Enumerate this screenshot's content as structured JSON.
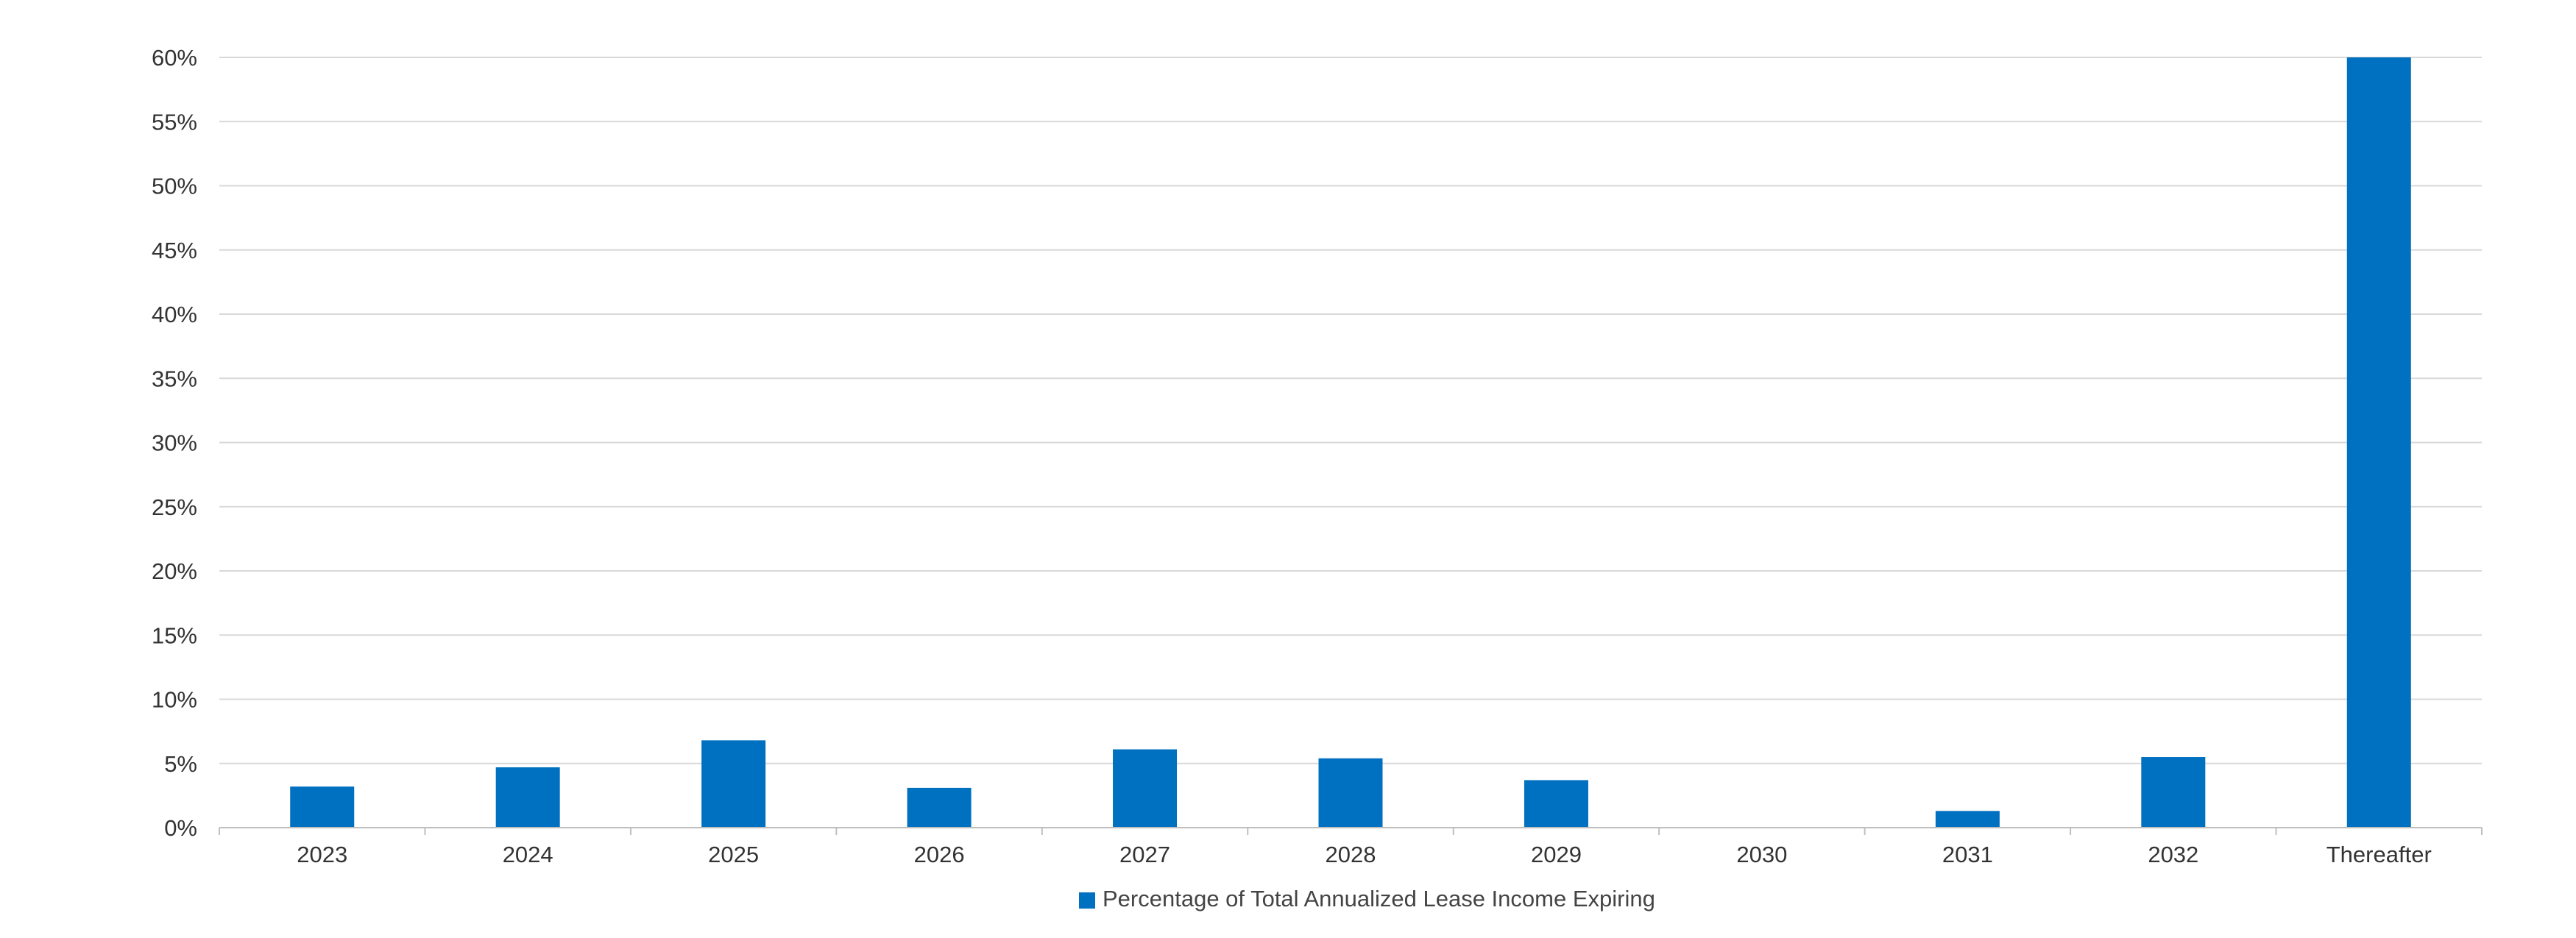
{
  "chart_data": {
    "type": "bar",
    "categories": [
      "2023",
      "2024",
      "2025",
      "2026",
      "2027",
      "2028",
      "2029",
      "2030",
      "2031",
      "2032",
      "Thereafter"
    ],
    "series": [
      {
        "name": "Percentage of Total Annualized Lease Income Expiring",
        "values": [
          3.2,
          4.7,
          6.8,
          3.1,
          6.1,
          5.4,
          3.7,
          0,
          1.3,
          5.5,
          60.0
        ],
        "color": "#0070C0"
      }
    ],
    "yticks": [
      "0%",
      "5%",
      "10%",
      "15%",
      "20%",
      "25%",
      "30%",
      "35%",
      "40%",
      "45%",
      "50%",
      "55%",
      "60%"
    ],
    "ylim": [
      0,
      60
    ],
    "ystep": 5,
    "grid": true,
    "legend_position": "bottom-center",
    "title": "",
    "xlabel": "",
    "ylabel": ""
  }
}
